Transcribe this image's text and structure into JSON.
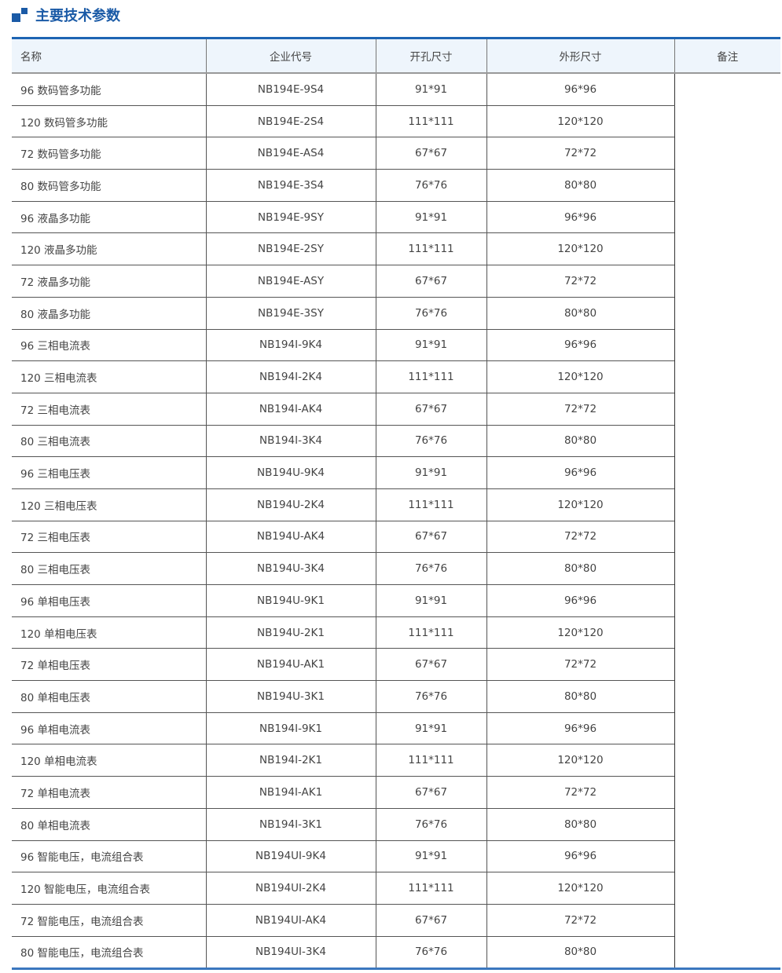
{
  "title": "主要技术参数",
  "headers": [
    "名称",
    "企业代号",
    "开孔尺寸",
    "外形尺寸",
    "备注"
  ],
  "rows": [
    [
      "96 数码管多功能",
      "NB194E-9S4",
      "91*91",
      "96*96"
    ],
    [
      "120 数码管多功能",
      "NB194E-2S4",
      "111*111",
      "120*120"
    ],
    [
      "72 数码管多功能",
      "NB194E-AS4",
      "67*67",
      "72*72"
    ],
    [
      "80 数码管多功能",
      "NB194E-3S4",
      "76*76",
      "80*80"
    ],
    [
      "96 液晶多功能",
      "NB194E-9SY",
      "91*91",
      "96*96"
    ],
    [
      "120 液晶多功能",
      "NB194E-2SY",
      "111*111",
      "120*120"
    ],
    [
      "72 液晶多功能",
      "NB194E-ASY",
      "67*67",
      "72*72"
    ],
    [
      "80 液晶多功能",
      "NB194E-3SY",
      "76*76",
      "80*80"
    ],
    [
      "96 三相电流表",
      "NB194I-9K4",
      "91*91",
      "96*96"
    ],
    [
      "120 三相电流表",
      "NB194I-2K4",
      "111*111",
      "120*120"
    ],
    [
      "72 三相电流表",
      "NB194I-AK4",
      "67*67",
      "72*72"
    ],
    [
      "80 三相电流表",
      "NB194I-3K4",
      "76*76",
      "80*80"
    ],
    [
      "96 三相电压表",
      "NB194U-9K4",
      "91*91",
      "96*96"
    ],
    [
      "120 三相电压表",
      "NB194U-2K4",
      "111*111",
      "120*120"
    ],
    [
      "72 三相电压表",
      "NB194U-AK4",
      "67*67",
      "72*72"
    ],
    [
      "80 三相电压表",
      "NB194U-3K4",
      "76*76",
      "80*80"
    ],
    [
      "96 单相电压表",
      "NB194U-9K1",
      "91*91",
      "96*96"
    ],
    [
      "120 单相电压表",
      "NB194U-2K1",
      "111*111",
      "120*120"
    ],
    [
      "72 单相电压表",
      "NB194U-AK1",
      "67*67",
      "72*72"
    ],
    [
      "80 单相电压表",
      "NB194U-3K1",
      "76*76",
      "80*80"
    ],
    [
      "96 单相电流表",
      "NB194I-9K1",
      "91*91",
      "96*96"
    ],
    [
      "120 单相电流表",
      "NB194I-2K1",
      "111*111",
      "120*120"
    ],
    [
      "72 单相电流表",
      "NB194I-AK1",
      "67*67",
      "72*72"
    ],
    [
      "80 单相电流表",
      "NB194I-3K1",
      "76*76",
      "80*80"
    ],
    [
      "96 智能电压，电流组合表",
      "NB194UI-9K4",
      "91*91",
      "96*96"
    ],
    [
      "120 智能电压，电流组合表",
      "NB194UI-2K4",
      "111*111",
      "120*120"
    ],
    [
      "72 智能电压，电流组合表",
      "NB194UI-AK4",
      "67*67",
      "72*72"
    ],
    [
      "80 智能电压，电流组合表",
      "NB194UI-3K4",
      "76*76",
      "80*80"
    ]
  ],
  "remark": ""
}
